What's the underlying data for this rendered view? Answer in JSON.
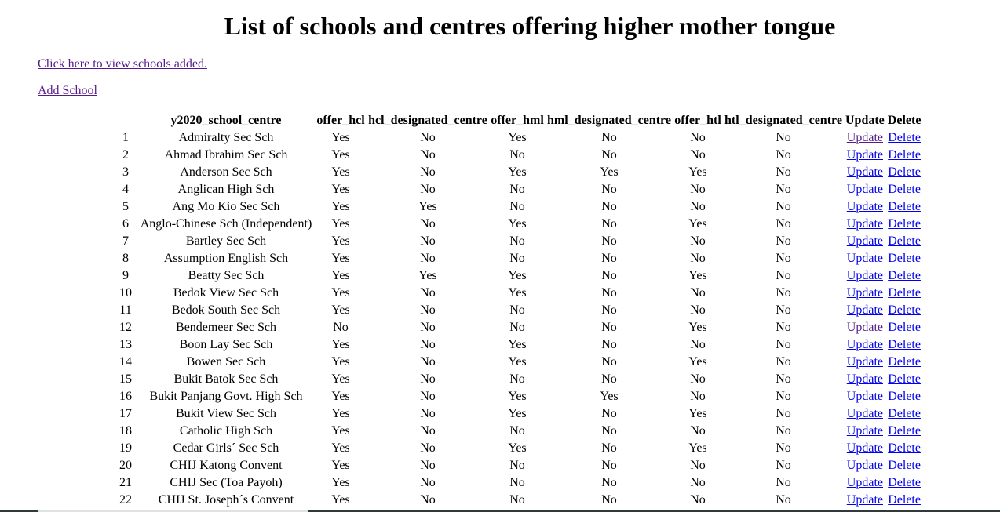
{
  "page": {
    "title": "List of schools and centres offering higher mother tongue",
    "view_link": "Click here to view schools added.",
    "add_link": "Add School"
  },
  "table": {
    "headers": [
      "",
      "y2020_school_centre",
      "offer_hcl",
      "hcl_designated_centre",
      "offer_hml",
      "hml_designated_centre",
      "offer_htl",
      "htl_designated_centre",
      "Update",
      "Delete"
    ],
    "update_label": "Update",
    "delete_label": "Delete",
    "rows": [
      [
        "1",
        "Admiralty Sec Sch",
        "Yes",
        "No",
        "Yes",
        "No",
        "No",
        "No"
      ],
      [
        "2",
        "Ahmad Ibrahim Sec Sch",
        "Yes",
        "No",
        "No",
        "No",
        "No",
        "No"
      ],
      [
        "3",
        "Anderson Sec Sch",
        "Yes",
        "No",
        "Yes",
        "Yes",
        "Yes",
        "No"
      ],
      [
        "4",
        "Anglican High Sch",
        "Yes",
        "No",
        "No",
        "No",
        "No",
        "No"
      ],
      [
        "5",
        "Ang Mo Kio Sec Sch",
        "Yes",
        "Yes",
        "No",
        "No",
        "No",
        "No"
      ],
      [
        "6",
        "Anglo-Chinese Sch (Independent)",
        "Yes",
        "No",
        "Yes",
        "No",
        "Yes",
        "No"
      ],
      [
        "7",
        "Bartley Sec Sch",
        "Yes",
        "No",
        "No",
        "No",
        "No",
        "No"
      ],
      [
        "8",
        "Assumption English Sch",
        "Yes",
        "No",
        "No",
        "No",
        "No",
        "No"
      ],
      [
        "9",
        "Beatty Sec Sch",
        "Yes",
        "Yes",
        "Yes",
        "No",
        "Yes",
        "No"
      ],
      [
        "10",
        "Bedok View Sec Sch",
        "Yes",
        "No",
        "Yes",
        "No",
        "No",
        "No"
      ],
      [
        "11",
        "Bedok South Sec Sch",
        "Yes",
        "No",
        "No",
        "No",
        "No",
        "No"
      ],
      [
        "12",
        "Bendemeer Sec Sch",
        "No",
        "No",
        "No",
        "No",
        "Yes",
        "No"
      ],
      [
        "13",
        "Boon Lay Sec Sch",
        "Yes",
        "No",
        "Yes",
        "No",
        "No",
        "No"
      ],
      [
        "14",
        "Bowen Sec Sch",
        "Yes",
        "No",
        "Yes",
        "No",
        "Yes",
        "No"
      ],
      [
        "15",
        "Bukit Batok Sec Sch",
        "Yes",
        "No",
        "No",
        "No",
        "No",
        "No"
      ],
      [
        "16",
        "Bukit Panjang Govt. High Sch",
        "Yes",
        "No",
        "Yes",
        "Yes",
        "No",
        "No"
      ],
      [
        "17",
        "Bukit View Sec Sch",
        "Yes",
        "No",
        "Yes",
        "No",
        "Yes",
        "No"
      ],
      [
        "18",
        "Catholic High Sch",
        "Yes",
        "No",
        "No",
        "No",
        "No",
        "No"
      ],
      [
        "19",
        "Cedar Girls´ Sec Sch",
        "Yes",
        "No",
        "Yes",
        "No",
        "Yes",
        "No"
      ],
      [
        "20",
        "CHIJ Katong Convent",
        "Yes",
        "No",
        "No",
        "No",
        "No",
        "No"
      ],
      [
        "21",
        "CHIJ Sec (Toa Payoh)",
        "Yes",
        "No",
        "No",
        "No",
        "No",
        "No"
      ],
      [
        "22",
        "CHIJ St. Joseph´s Convent",
        "Yes",
        "No",
        "No",
        "No",
        "No",
        "No"
      ]
    ],
    "visited_update_rows": [
      0,
      11
    ]
  }
}
